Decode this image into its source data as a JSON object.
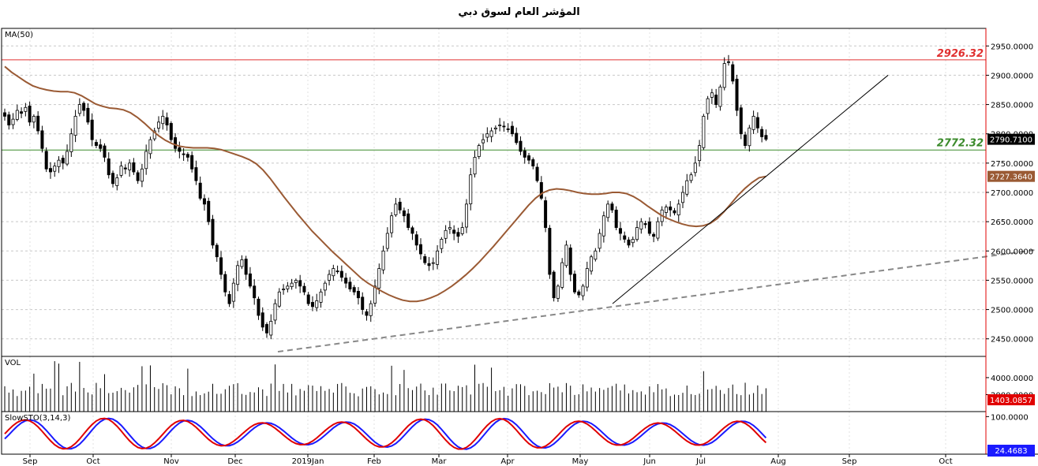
{
  "title": "المؤشر العام لسوق دبي",
  "colors": {
    "ma": "#9a5a34",
    "resistance": "#e03030",
    "support": "#3a8a2a",
    "stoch_k": "#e00000",
    "stoch_d": "#1a1aff",
    "axis_accent": "#e00000",
    "grid": "#c8c8c8"
  },
  "chart_data": [
    {
      "type": "candlestick",
      "panel": "price",
      "indicator_label": "MA(50)",
      "ylim": [
        2420,
        2980
      ],
      "yticks": [
        "2450.0000",
        "2500.0000",
        "2550.0000",
        "2600.0000",
        "2650.0000",
        "2700.0000",
        "2750.0000",
        "2800.0000",
        "2850.0000",
        "2900.0000",
        "2950.0000"
      ],
      "x_months": [
        "Sep",
        "Oct",
        "Nov",
        "Dec",
        "2019Jan",
        "Feb",
        "Mar",
        "Apr",
        "May",
        "Jun",
        "Jul",
        "Aug",
        "Sep",
        "Oct"
      ],
      "closes": [
        2830,
        2815,
        2825,
        2840,
        2835,
        2845,
        2820,
        2830,
        2805,
        2775,
        2740,
        2735,
        2745,
        2755,
        2750,
        2770,
        2800,
        2830,
        2850,
        2840,
        2820,
        2790,
        2780,
        2775,
        2760,
        2730,
        2715,
        2725,
        2745,
        2740,
        2750,
        2735,
        2720,
        2740,
        2770,
        2790,
        2805,
        2820,
        2830,
        2815,
        2790,
        2775,
        2770,
        2765,
        2760,
        2740,
        2720,
        2690,
        2680,
        2650,
        2610,
        2590,
        2560,
        2530,
        2510,
        2545,
        2575,
        2585,
        2560,
        2540,
        2520,
        2490,
        2470,
        2460,
        2480,
        2510,
        2530,
        2535,
        2540,
        2545,
        2550,
        2540,
        2530,
        2510,
        2505,
        2515,
        2530,
        2545,
        2560,
        2570,
        2565,
        2555,
        2545,
        2535,
        2530,
        2520,
        2500,
        2490,
        2510,
        2540,
        2570,
        2600,
        2630,
        2660,
        2680,
        2670,
        2660,
        2640,
        2630,
        2610,
        2595,
        2580,
        2575,
        2580,
        2600,
        2620,
        2635,
        2640,
        2630,
        2625,
        2640,
        2680,
        2730,
        2760,
        2780,
        2790,
        2800,
        2805,
        2810,
        2815,
        2812,
        2808,
        2800,
        2785,
        2770,
        2760,
        2755,
        2745,
        2720,
        2690,
        2640,
        2560,
        2520,
        2540,
        2580,
        2610,
        2560,
        2530,
        2525,
        2540,
        2570,
        2590,
        2600,
        2630,
        2660,
        2680,
        2670,
        2640,
        2630,
        2620,
        2610,
        2620,
        2640,
        2650,
        2645,
        2630,
        2625,
        2650,
        2670,
        2675,
        2670,
        2665,
        2680,
        2700,
        2720,
        2730,
        2750,
        2780,
        2830,
        2860,
        2870,
        2850,
        2880,
        2920,
        2922,
        2890,
        2840,
        2800,
        2780,
        2810,
        2830,
        2810,
        2795,
        2790.71
      ],
      "ma50": [
        2915,
        2905,
        2897,
        2889,
        2882,
        2878,
        2875,
        2873,
        2872,
        2872,
        2870,
        2865,
        2858,
        2851,
        2847,
        2844,
        2843,
        2841,
        2836,
        2828,
        2818,
        2807,
        2797,
        2789,
        2783,
        2779,
        2777,
        2776,
        2776,
        2776,
        2775,
        2773,
        2769,
        2765,
        2761,
        2756,
        2749,
        2738,
        2724,
        2708,
        2692,
        2677,
        2662,
        2648,
        2634,
        2622,
        2610,
        2598,
        2587,
        2576,
        2565,
        2554,
        2545,
        2538,
        2531,
        2525,
        2520,
        2516,
        2514,
        2514,
        2516,
        2520,
        2525,
        2532,
        2540,
        2549,
        2559,
        2570,
        2582,
        2595,
        2608,
        2622,
        2636,
        2650,
        2664,
        2678,
        2690,
        2699,
        2704,
        2706,
        2705,
        2703,
        2700,
        2698,
        2697,
        2697,
        2698,
        2700,
        2700,
        2698,
        2693,
        2686,
        2677,
        2669,
        2661,
        2655,
        2650,
        2646,
        2643,
        2642,
        2643,
        2647,
        2655,
        2667,
        2681,
        2695,
        2707,
        2717,
        2725,
        2727.364
      ]
    },
    {
      "type": "bar",
      "panel": "volume",
      "indicator_label": "VOL",
      "yticks": [
        "2000.0000",
        "4000.0000"
      ],
      "last_value": "1403.0857"
    },
    {
      "type": "line",
      "panel": "stochastic",
      "indicator_label": "SlowSTO(3,14,3)",
      "yticks": [
        "100.0000"
      ],
      "last_value": "24.4683"
    }
  ],
  "annotations": {
    "resistance_value": 2926.32,
    "resistance_label": "2926.32",
    "support_value": 2772.32,
    "support_label": "2772.32",
    "last_price_label": "2790.7100",
    "last_ma_label": "2727.3640"
  }
}
